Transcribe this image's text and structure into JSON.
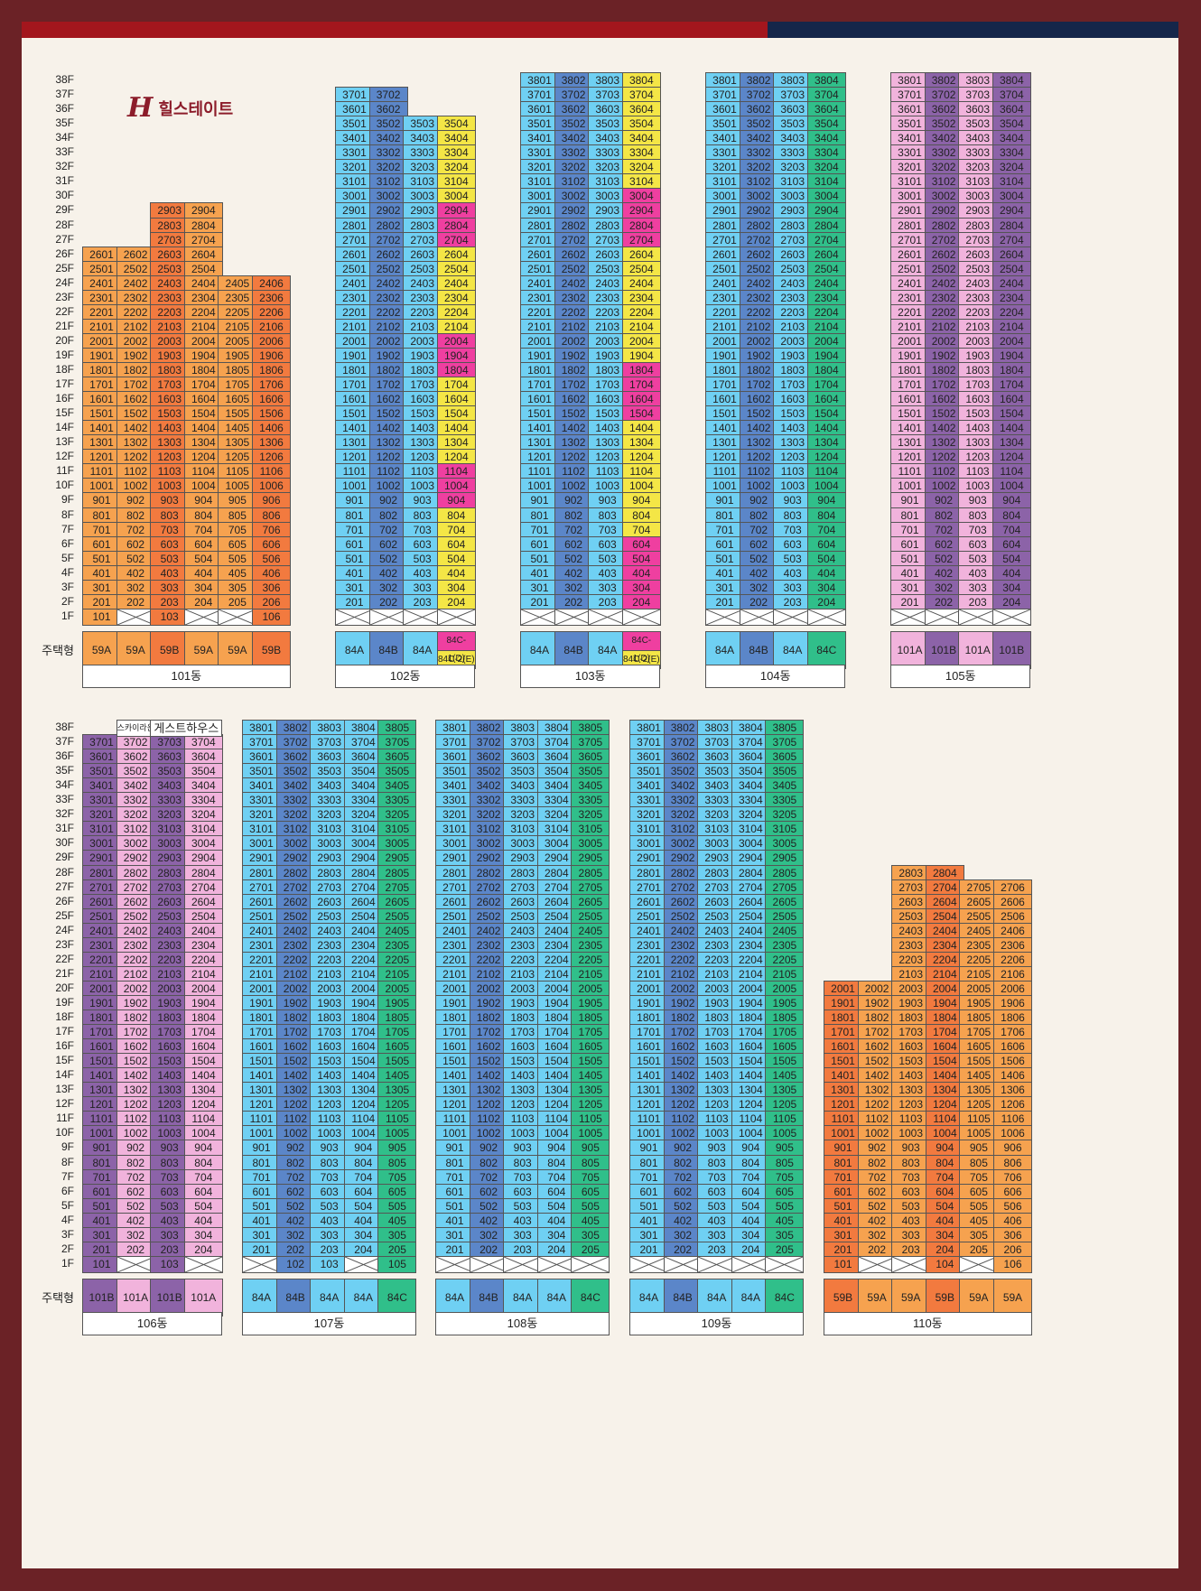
{
  "brand": {
    "logo_mark": "H",
    "logo_text": "힐스테이트"
  },
  "labels": {
    "housing_type": "주택형"
  },
  "colors": {
    "59A": "#f6a24f",
    "59B": "#f27a3f",
    "84A": "#6fd0f3",
    "84B": "#5b86c9",
    "84C": "#30bf8a",
    "84C-1": "#ef3fa0",
    "84C-2": "#f4e646",
    "101A": "#f1b3dc",
    "101B": "#8c63a8",
    "101-59A": "#f6a24f",
    "101-59B": "#f27a3f"
  },
  "section1": {
    "floors": [
      "38F",
      "37F",
      "36F",
      "35F",
      "34F",
      "33F",
      "32F",
      "31F",
      "30F",
      "29F",
      "28F",
      "27F",
      "26F",
      "25F",
      "24F",
      "23F",
      "22F",
      "21F",
      "20F",
      "19F",
      "18F",
      "17F",
      "16F",
      "15F",
      "14F",
      "13F",
      "12F",
      "11F",
      "10F",
      "9F",
      "8F",
      "7F",
      "6F",
      "5F",
      "4F",
      "3F",
      "2F",
      "1F"
    ]
  },
  "section2": {
    "floors": [
      "38F",
      "37F",
      "36F",
      "35F",
      "34F",
      "33F",
      "32F",
      "31F",
      "30F",
      "29F",
      "28F",
      "27F",
      "26F",
      "25F",
      "24F",
      "23F",
      "22F",
      "21F",
      "20F",
      "19F",
      "18F",
      "17F",
      "16F",
      "15F",
      "14F",
      "13F",
      "12F",
      "11F",
      "10F",
      "9F",
      "8F",
      "7F",
      "6F",
      "5F",
      "4F",
      "3F",
      "2F",
      "1F"
    ]
  },
  "buildings": [
    {
      "name": "101동",
      "lines": [
        {
          "suffix": "01",
          "type": "59A",
          "top": 26,
          "first": 1,
          "blank1F": false
        },
        {
          "suffix": "02",
          "type": "59A",
          "top": 26,
          "first": 2,
          "blank1F": true
        },
        {
          "suffix": "03",
          "type": "59B",
          "top": 29,
          "first": 1,
          "blank1F": false
        },
        {
          "suffix": "04",
          "type": "59A",
          "top": 29,
          "first": 2,
          "blank1F": true
        },
        {
          "suffix": "05",
          "type": "59A",
          "top": 24,
          "first": 2,
          "blank1F": true
        },
        {
          "suffix": "06",
          "type": "59B",
          "top": 24,
          "first": 1,
          "blank1F": false
        }
      ],
      "type_labels": [
        "59A",
        "59A",
        "59B",
        "59A",
        "59A",
        "59B"
      ],
      "overrides": {}
    },
    {
      "name": "102동",
      "lines": [
        {
          "suffix": "01",
          "type": "84A",
          "top": 37,
          "first": 2,
          "blank1F": true
        },
        {
          "suffix": "02",
          "type": "84B",
          "top": 37,
          "first": 2,
          "blank1F": true
        },
        {
          "suffix": "03",
          "type": "84A",
          "top": 35,
          "first": 2,
          "blank1F": true
        },
        {
          "suffix": "04",
          "type": "84C-2",
          "top": 35,
          "first": 2,
          "blank1F": true
        }
      ],
      "type_labels": [
        "84A",
        "84B",
        "84A",
        "84C-1(D)|84C-2(E)"
      ],
      "overrides": {
        "2904": "84C-1",
        "2804": "84C-1",
        "2704": "84C-1",
        "2004": "84C-1",
        "1904": "84C-1",
        "1804": "84C-1",
        "1104": "84C-1",
        "1004": "84C-1",
        "904": "84C-1"
      }
    },
    {
      "name": "103동",
      "lines": [
        {
          "suffix": "01",
          "type": "84A",
          "top": 38,
          "first": 2,
          "blank1F": true
        },
        {
          "suffix": "02",
          "type": "84B",
          "top": 38,
          "first": 2,
          "blank1F": true
        },
        {
          "suffix": "03",
          "type": "84A",
          "top": 38,
          "first": 2,
          "blank1F": true
        },
        {
          "suffix": "04",
          "type": "84C-2",
          "top": 38,
          "first": 2,
          "blank1F": true
        }
      ],
      "type_labels": [
        "84A",
        "84B",
        "84A",
        "84C-1(D)|84C-2(E)"
      ],
      "overrides": {
        "3004": "84C-1",
        "2904": "84C-1",
        "2804": "84C-1",
        "2704": "84C-1",
        "1804": "84C-1",
        "1704": "84C-1",
        "1604": "84C-1",
        "1504": "84C-1",
        "604": "84C-1",
        "504": "84C-1",
        "404": "84C-1",
        "304": "84C-1",
        "204": "84C-1"
      }
    },
    {
      "name": "104동",
      "lines": [
        {
          "suffix": "01",
          "type": "84A",
          "top": 38,
          "first": 2,
          "blank1F": true
        },
        {
          "suffix": "02",
          "type": "84B",
          "top": 38,
          "first": 2,
          "blank1F": true
        },
        {
          "suffix": "03",
          "type": "84A",
          "top": 38,
          "first": 2,
          "blank1F": true
        },
        {
          "suffix": "04",
          "type": "84C",
          "top": 38,
          "first": 2,
          "blank1F": true
        }
      ],
      "type_labels": [
        "84A",
        "84B",
        "84A",
        "84C"
      ],
      "overrides": {}
    },
    {
      "name": "105동",
      "lines": [
        {
          "suffix": "01",
          "type": "101A",
          "top": 38,
          "first": 2,
          "blank1F": true
        },
        {
          "suffix": "02",
          "type": "101B",
          "top": 38,
          "first": 2,
          "blank1F": true
        },
        {
          "suffix": "03",
          "type": "101A",
          "top": 38,
          "first": 2,
          "blank1F": true
        },
        {
          "suffix": "04",
          "type": "101B",
          "top": 38,
          "first": 2,
          "blank1F": true
        }
      ],
      "type_labels": [
        "101A",
        "101B",
        "101A",
        "101B"
      ],
      "overrides": {}
    },
    {
      "name": "106동",
      "lines": [
        {
          "suffix": "01",
          "type": "101B",
          "top": 37,
          "first": 1,
          "blank1F": false
        },
        {
          "suffix": "02",
          "type": "101A",
          "top": 37,
          "first": 2,
          "blank1F": true
        },
        {
          "suffix": "03",
          "type": "101B",
          "top": 37,
          "first": 1,
          "blank1F": false
        },
        {
          "suffix": "04",
          "type": "101A",
          "top": 37,
          "first": 2,
          "blank1F": true
        }
      ],
      "type_labels": [
        "101B",
        "101A",
        "101B",
        "101A"
      ],
      "annotations": [
        "스카이라운지",
        "게스트하우스"
      ],
      "overrides": {}
    },
    {
      "name": "107동",
      "lines": [
        {
          "suffix": "01",
          "type": "84A",
          "top": 38,
          "first": 2,
          "blank1F": true
        },
        {
          "suffix": "02",
          "type": "84B",
          "top": 38,
          "first": 1,
          "blank1F": false
        },
        {
          "suffix": "03",
          "type": "84A",
          "top": 38,
          "first": 1,
          "blank1F": false
        },
        {
          "suffix": "04",
          "type": "84A",
          "top": 38,
          "first": 2,
          "blank1F": true
        },
        {
          "suffix": "05",
          "type": "84C",
          "top": 38,
          "first": 1,
          "blank1F": false
        }
      ],
      "type_labels": [
        "84A",
        "84B",
        "84A",
        "84A",
        "84C"
      ],
      "overrides": {}
    },
    {
      "name": "108동",
      "lines": [
        {
          "suffix": "01",
          "type": "84A",
          "top": 38,
          "first": 2,
          "blank1F": true
        },
        {
          "suffix": "02",
          "type": "84B",
          "top": 38,
          "first": 2,
          "blank1F": true
        },
        {
          "suffix": "03",
          "type": "84A",
          "top": 38,
          "first": 2,
          "blank1F": true
        },
        {
          "suffix": "04",
          "type": "84A",
          "top": 38,
          "first": 2,
          "blank1F": true
        },
        {
          "suffix": "05",
          "type": "84C",
          "top": 38,
          "first": 2,
          "blank1F": true
        }
      ],
      "type_labels": [
        "84A",
        "84B",
        "84A",
        "84A",
        "84C"
      ],
      "overrides": {}
    },
    {
      "name": "109동",
      "lines": [
        {
          "suffix": "01",
          "type": "84A",
          "top": 38,
          "first": 2,
          "blank1F": true
        },
        {
          "suffix": "02",
          "type": "84B",
          "top": 38,
          "first": 2,
          "blank1F": true
        },
        {
          "suffix": "03",
          "type": "84A",
          "top": 38,
          "first": 2,
          "blank1F": true
        },
        {
          "suffix": "04",
          "type": "84A",
          "top": 38,
          "first": 2,
          "blank1F": true
        },
        {
          "suffix": "05",
          "type": "84C",
          "top": 38,
          "first": 2,
          "blank1F": true
        }
      ],
      "type_labels": [
        "84A",
        "84B",
        "84A",
        "84A",
        "84C"
      ],
      "overrides": {}
    },
    {
      "name": "110동",
      "lines": [
        {
          "suffix": "01",
          "type": "59B",
          "top": 20,
          "first": 1,
          "blank1F": false
        },
        {
          "suffix": "02",
          "type": "59A",
          "top": 20,
          "first": 2,
          "blank1F": true
        },
        {
          "suffix": "03",
          "type": "59A",
          "top": 28,
          "first": 2,
          "blank1F": true
        },
        {
          "suffix": "04",
          "type": "59B",
          "top": 28,
          "first": 1,
          "blank1F": false
        },
        {
          "suffix": "05",
          "type": "59A",
          "top": 27,
          "first": 2,
          "blank1F": true
        },
        {
          "suffix": "06",
          "type": "59A",
          "top": 27,
          "first": 1,
          "blank1F": false
        }
      ],
      "type_labels": [
        "59B",
        "59A",
        "59A",
        "59B",
        "59A",
        "59A"
      ],
      "overrides": {}
    }
  ]
}
